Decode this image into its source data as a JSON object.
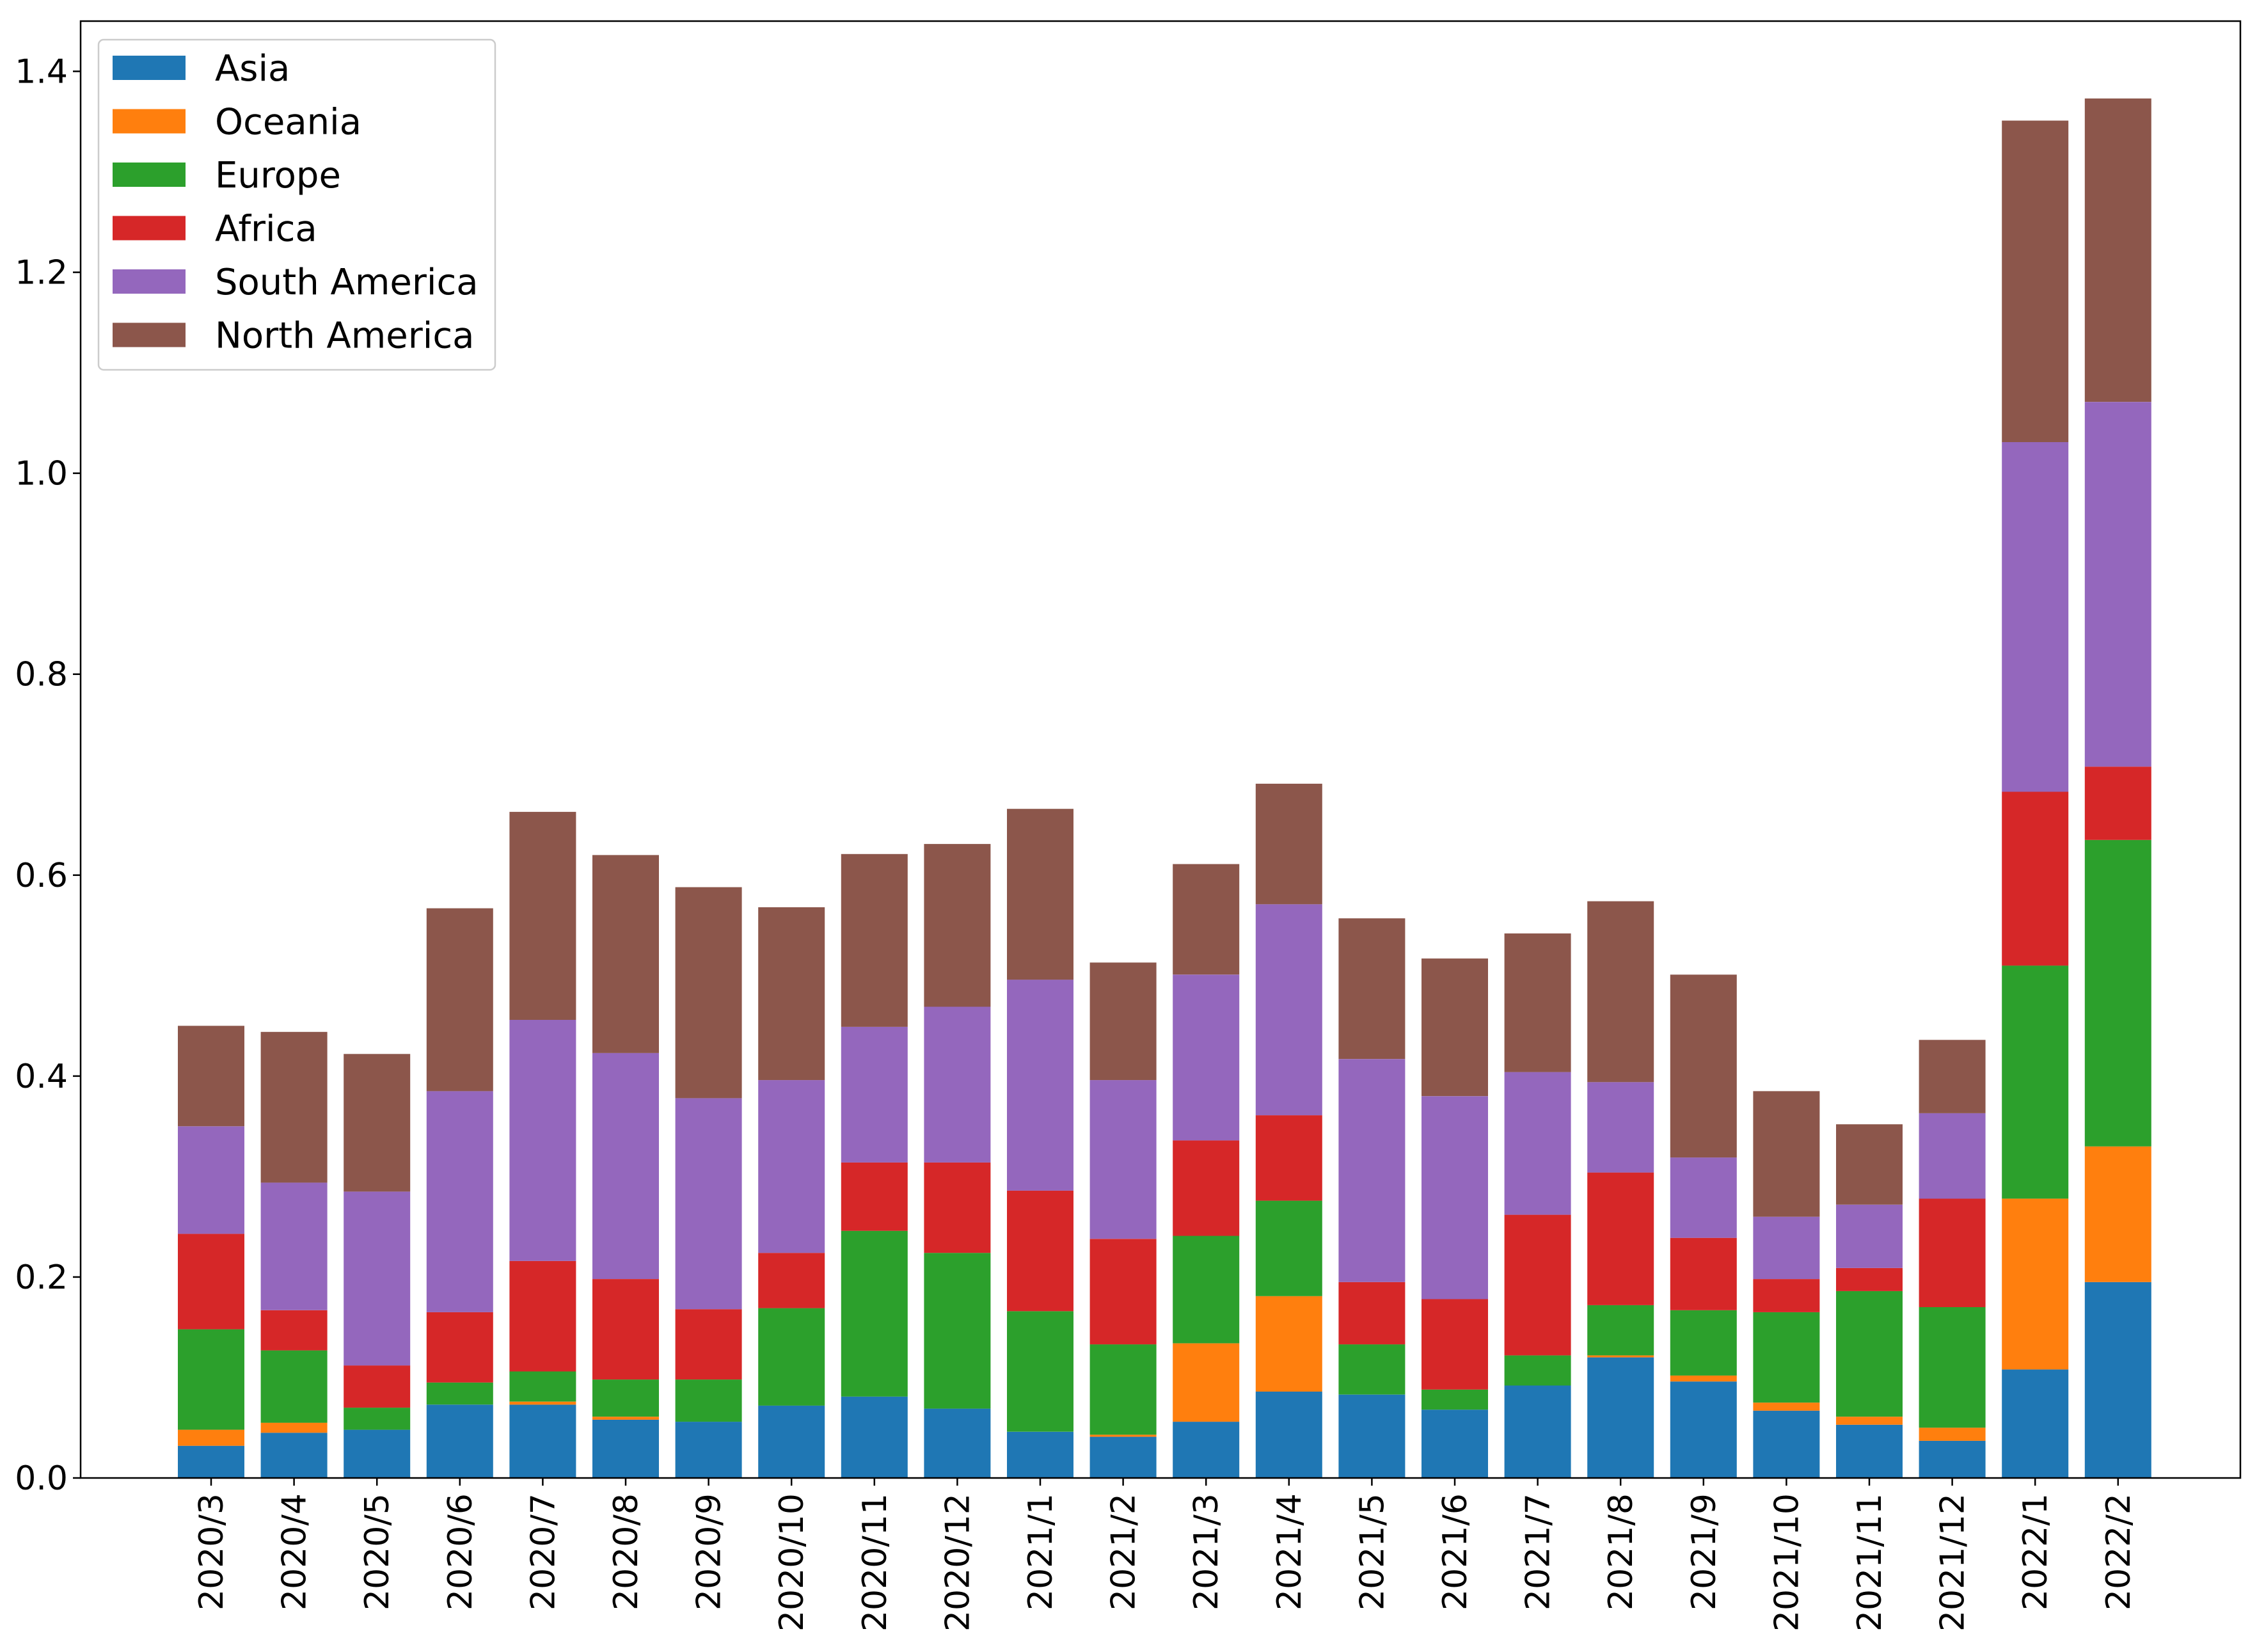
{
  "chart_data": {
    "type": "bar",
    "stacked": true,
    "title": "",
    "xlabel": "",
    "ylabel": "",
    "ylim": [
      0,
      1.45
    ],
    "yticks": [
      0.0,
      0.2,
      0.4,
      0.6,
      0.8,
      1.0,
      1.2,
      1.4
    ],
    "ytick_labels": [
      "0.0",
      "0.2",
      "0.4",
      "0.6",
      "0.8",
      "1.0",
      "1.2",
      "1.4"
    ],
    "legend_position": "top-left",
    "categories": [
      "2020/3",
      "2020/4",
      "2020/5",
      "2020/6",
      "2020/7",
      "2020/8",
      "2020/9",
      "2020/10",
      "2020/11",
      "2020/12",
      "2021/1",
      "2021/2",
      "2021/3",
      "2021/4",
      "2021/5",
      "2021/6",
      "2021/7",
      "2021/8",
      "2021/9",
      "2021/10",
      "2021/11",
      "2021/12",
      "2022/1",
      "2022/2"
    ],
    "series": [
      {
        "name": "Asia",
        "color": "#1f77b4",
        "values": [
          0.032,
          0.045,
          0.048,
          0.073,
          0.073,
          0.058,
          0.056,
          0.072,
          0.081,
          0.069,
          0.046,
          0.041,
          0.056,
          0.086,
          0.083,
          0.068,
          0.092,
          0.12,
          0.096,
          0.067,
          0.053,
          0.037,
          0.108,
          0.195
        ]
      },
      {
        "name": "Oceania",
        "color": "#ff7f0e",
        "values": [
          0.016,
          0.01,
          0.0,
          0.0,
          0.003,
          0.003,
          0.0,
          0.0,
          0.0,
          0.0,
          0.0,
          0.002,
          0.078,
          0.095,
          0.0,
          0.0,
          0.0,
          0.002,
          0.006,
          0.008,
          0.008,
          0.013,
          0.17,
          0.135
        ]
      },
      {
        "name": "Europe",
        "color": "#2ca02c",
        "values": [
          0.1,
          0.072,
          0.022,
          0.022,
          0.03,
          0.037,
          0.042,
          0.097,
          0.165,
          0.155,
          0.12,
          0.09,
          0.107,
          0.095,
          0.05,
          0.02,
          0.03,
          0.05,
          0.065,
          0.09,
          0.125,
          0.12,
          0.232,
          0.305
        ]
      },
      {
        "name": "Africa",
        "color": "#d62728",
        "values": [
          0.095,
          0.04,
          0.042,
          0.07,
          0.11,
          0.1,
          0.07,
          0.055,
          0.068,
          0.09,
          0.12,
          0.105,
          0.095,
          0.085,
          0.062,
          0.09,
          0.14,
          0.132,
          0.072,
          0.033,
          0.023,
          0.108,
          0.173,
          0.073
        ]
      },
      {
        "name": "South America",
        "color": "#9467bd",
        "values": [
          0.107,
          0.127,
          0.173,
          0.22,
          0.24,
          0.225,
          0.21,
          0.172,
          0.135,
          0.155,
          0.21,
          0.158,
          0.165,
          0.21,
          0.222,
          0.202,
          0.142,
          0.09,
          0.08,
          0.062,
          0.063,
          0.085,
          0.348,
          0.363
        ]
      },
      {
        "name": "North America",
        "color": "#8c564b",
        "values": [
          0.1,
          0.15,
          0.137,
          0.182,
          0.207,
          0.197,
          0.21,
          0.172,
          0.172,
          0.162,
          0.17,
          0.117,
          0.11,
          0.12,
          0.14,
          0.137,
          0.138,
          0.18,
          0.182,
          0.125,
          0.08,
          0.073,
          0.32,
          0.302
        ]
      }
    ]
  }
}
